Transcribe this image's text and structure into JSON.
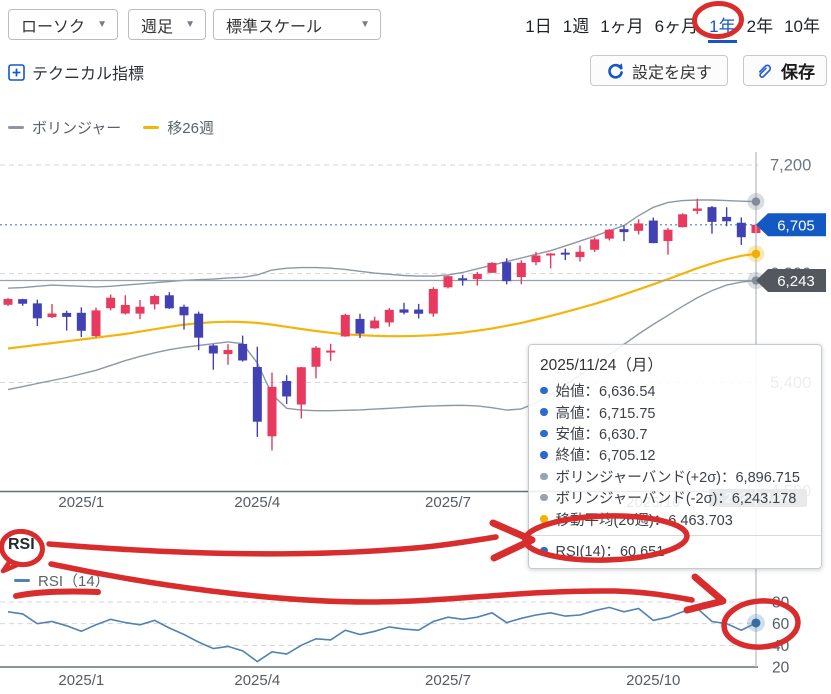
{
  "toolbar": {
    "chart_type": "ローソク",
    "timeframe": "週足",
    "scale": "標準スケール",
    "periods": [
      "1日",
      "1週",
      "1ヶ月",
      "6ヶ月",
      "1年",
      "2年",
      "10年"
    ],
    "selected_period": "1年",
    "technical_link": "テクニカル指標",
    "reset_button": "設定を戻す",
    "save_button": "保存"
  },
  "legend": {
    "main": [
      {
        "label": "ボリンジャー",
        "color": "#8d98a4"
      },
      {
        "label": "移26週",
        "color": "#f5b40a"
      }
    ],
    "rsi_title": "RSI",
    "rsi": [
      {
        "label": "RSI（14）",
        "color": "#5182b0"
      }
    ]
  },
  "tooltip": {
    "title": "2025/11/24（月）",
    "rows": [
      {
        "label": "始値",
        "value": "6,636.54",
        "dot": "#2b6bd0"
      },
      {
        "label": "高値",
        "value": "6,715.75",
        "dot": "#2b6bd0"
      },
      {
        "label": "安値",
        "value": "6,630.7",
        "dot": "#2b6bd0"
      },
      {
        "label": "終値",
        "value": "6,705.12",
        "dot": "#2b6bd0"
      },
      {
        "label": "ボリンジャーバンド(+2σ)",
        "value": "6,896.715",
        "dot": "#9aa2ab"
      },
      {
        "label": "ボリンジャーバンド(-2σ)",
        "value": "6,243.178",
        "dot": "#9aa2ab"
      },
      {
        "label": "移動平均(26週)",
        "value": "6,463.703",
        "dot": "#f0b400"
      }
    ],
    "rsi_row": {
      "label": "RSI(14)",
      "value": "60.651",
      "dot": "#2b6bd0"
    }
  },
  "axis": {
    "current_price_badge": "6,705",
    "band_badge": "6,243",
    "date_badge": "2025/11/24"
  },
  "colors": {
    "up": "#e83a5e",
    "down": "#4141b3",
    "bollinger": "#8d98a4",
    "ma": "#f5b40a",
    "rsi_line": "#5182b0",
    "rsi_dot": "#356e9e",
    "accent_blue": "#1456c8",
    "annotation": "#d92c2c",
    "badge_close": "#1259c3",
    "badge_band": "#53585f",
    "date_badge": "#4e545c",
    "grid": "#d3d5d8",
    "axis_line": "#677077",
    "crosshair": "#b3bac1",
    "price_line_dotted": "#74a0d8",
    "band_cross_line": "#98a0a8"
  },
  "chart_data": {
    "type": "candlestick",
    "panels": [
      "price",
      "rsi"
    ],
    "interval": "weekly",
    "weeks": 52,
    "candles": [
      [
        6042,
        6099,
        6033,
        6090
      ],
      [
        6089,
        6092,
        6034,
        6051
      ],
      [
        6054,
        6085,
        5867,
        5930
      ],
      [
        5940,
        6049,
        5932,
        5970
      ],
      [
        5975,
        5993,
        5829,
        5942
      ],
      [
        5976,
        6021,
        5775,
        5827
      ],
      [
        5783,
        6018,
        5773,
        5996
      ],
      [
        6014,
        6128,
        5996,
        6101
      ],
      [
        5970,
        6121,
        5962,
        6041
      ],
      [
        5969,
        6083,
        5923,
        6026
      ],
      [
        6046,
        6127,
        6003,
        6115
      ],
      [
        6121,
        6147,
        6008,
        6013
      ],
      [
        6026,
        6043,
        5837,
        5955
      ],
      [
        5969,
        5986,
        5666,
        5770
      ],
      [
        5705,
        5715,
        5504,
        5639
      ],
      [
        5634,
        5716,
        5546,
        5668
      ],
      [
        5718,
        5787,
        5572,
        5581
      ],
      [
        5527,
        5695,
        4948,
        5074
      ],
      [
        4953,
        5481,
        4835,
        5363
      ],
      [
        5411,
        5459,
        5220,
        5283
      ],
      [
        5216,
        5528,
        5101,
        5525
      ],
      [
        5529,
        5700,
        5433,
        5687
      ],
      [
        5651,
        5720,
        5578,
        5663
      ],
      [
        5780,
        5968,
        5777,
        5958
      ],
      [
        5925,
        5968,
        5767,
        5803
      ],
      [
        5847,
        5943,
        5843,
        5912
      ],
      [
        5896,
        6016,
        5861,
        6000
      ],
      [
        6004,
        6059,
        5963,
        5977
      ],
      [
        6003,
        6050,
        5929,
        5968
      ],
      [
        5969,
        6187,
        5943,
        6173
      ],
      [
        6187,
        6284,
        6177,
        6279
      ],
      [
        6262,
        6290,
        6201,
        6260
      ],
      [
        6255,
        6315,
        6201,
        6297
      ],
      [
        6307,
        6395,
        6307,
        6389
      ],
      [
        6395,
        6427,
        6212,
        6238
      ],
      [
        6272,
        6411,
        6213,
        6389
      ],
      [
        6395,
        6481,
        6370,
        6450
      ],
      [
        6453,
        6470,
        6343,
        6467
      ],
      [
        6474,
        6508,
        6412,
        6460
      ],
      [
        6437,
        6533,
        6400,
        6481
      ],
      [
        6498,
        6600,
        6480,
        6584
      ],
      [
        6590,
        6669,
        6575,
        6664
      ],
      [
        6669,
        6700,
        6569,
        6644
      ],
      [
        6655,
        6750,
        6625,
        6716
      ],
      [
        6740,
        6765,
        6552,
        6553
      ],
      [
        6570,
        6679,
        6457,
        6664
      ],
      [
        6685,
        6800,
        6683,
        6792
      ],
      [
        6820,
        6920,
        6795,
        6840
      ],
      [
        6851,
        6860,
        6631,
        6729
      ],
      [
        6770,
        6850,
        6693,
        6734
      ],
      [
        6722,
        6766,
        6538,
        6602
      ],
      [
        6636.54,
        6715.75,
        6630.7,
        6705.12
      ]
    ],
    "bollinger_upper": [
      6180,
      6185,
      6195,
      6205,
      6200,
      6195,
      6190,
      6195,
      6205,
      6215,
      6225,
      6235,
      6245,
      6250,
      6255,
      6265,
      6270,
      6290,
      6330,
      6345,
      6350,
      6350,
      6345,
      6335,
      6320,
      6305,
      6295,
      6285,
      6280,
      6280,
      6290,
      6310,
      6340,
      6370,
      6400,
      6430,
      6460,
      6490,
      6530,
      6570,
      6610,
      6655,
      6700,
      6780,
      6850,
      6890,
      6905,
      6910,
      6910,
      6905,
      6900,
      6896.7
    ],
    "bollinger_lower": [
      5340,
      5365,
      5390,
      5415,
      5440,
      5470,
      5500,
      5540,
      5580,
      5615,
      5645,
      5670,
      5690,
      5705,
      5720,
      5735,
      5720,
      5560,
      5300,
      5185,
      5170,
      5165,
      5165,
      5168,
      5172,
      5178,
      5185,
      5192,
      5200,
      5205,
      5208,
      5210,
      5205,
      5190,
      5170,
      5180,
      5230,
      5300,
      5380,
      5460,
      5545,
      5630,
      5715,
      5800,
      5880,
      5955,
      6030,
      6100,
      6160,
      6205,
      6230,
      6243.2
    ],
    "ma26": [
      5680,
      5695,
      5710,
      5725,
      5740,
      5755,
      5770,
      5785,
      5800,
      5820,
      5840,
      5860,
      5878,
      5890,
      5898,
      5902,
      5900,
      5892,
      5878,
      5860,
      5842,
      5825,
      5810,
      5798,
      5790,
      5785,
      5782,
      5782,
      5785,
      5790,
      5800,
      5812,
      5828,
      5846,
      5868,
      5892,
      5920,
      5950,
      5982,
      6015,
      6050,
      6088,
      6128,
      6170,
      6212,
      6255,
      6300,
      6345,
      6385,
      6420,
      6448,
      6463.7
    ],
    "rsi14": [
      71,
      69,
      60,
      62,
      58,
      53,
      59,
      64,
      61,
      59,
      63,
      56,
      50,
      43,
      37,
      39,
      35,
      25,
      34,
      32,
      40,
      46,
      45,
      54,
      50,
      53,
      57,
      55,
      54,
      62,
      66,
      64,
      66,
      70,
      61,
      65,
      68,
      70,
      67,
      68,
      72,
      75,
      71,
      74,
      63,
      66,
      71,
      74,
      62,
      60,
      54,
      60.651
    ],
    "x_tick_labels": [
      "2025/1",
      "2025/4",
      "2025/7",
      "2025/10"
    ],
    "x_tick_indices": [
      5,
      17,
      30,
      44
    ],
    "price_axis": {
      "labels": [
        "7,200",
        "6,300",
        "5,400",
        "4,500"
      ],
      "values": [
        7200,
        6300,
        5400,
        4500
      ]
    },
    "rsi_axis": {
      "labels": [
        "80",
        "60",
        "40",
        "20"
      ],
      "values": [
        80,
        60,
        40,
        20
      ]
    },
    "crosshair": {
      "index": 51,
      "date": "2025/11/24",
      "close": 6705.12,
      "plus2sigma": 6896.715,
      "minus2sigma": 6243.178,
      "ma26": 6463.703,
      "rsi": 60.651
    }
  }
}
